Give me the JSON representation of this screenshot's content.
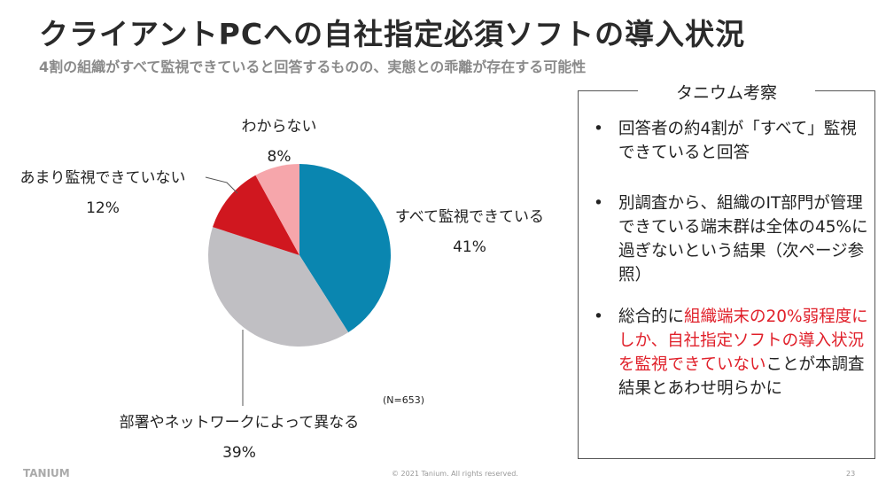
{
  "header": {
    "title": "クライアントPCへの自社指定必須ソフトの導入状況",
    "subtitle": "4割の組織がすべて監視できていると回答するものの、実態との乖離が存在する可能性"
  },
  "chart_data": {
    "type": "pie",
    "note": "(N=653)",
    "slices": [
      {
        "label": "すべて監視できている",
        "value": 41,
        "text": "41%",
        "color": "#0a86b0"
      },
      {
        "label": "部署やネットワークによって異なる",
        "value": 39,
        "text": "39%",
        "color": "#c0bfc3"
      },
      {
        "label": "あまり監視できていない",
        "value": 12,
        "text": "12%",
        "color": "#d0171f"
      },
      {
        "label": "わからない",
        "value": 8,
        "text": "8%",
        "color": "#f6a6ab"
      }
    ]
  },
  "panel": {
    "title": "タニウム考察",
    "bullets": [
      {
        "parts": [
          {
            "t": "回答者の約4割が「すべて」監視できていると回答",
            "red": false
          }
        ]
      },
      {
        "parts": [
          {
            "t": "別調査から、組織のIT部門が管理できている端末群は全体の45%に過ぎないという結果（次ページ参照）",
            "red": false
          }
        ]
      },
      {
        "parts": [
          {
            "t": "総合的に",
            "red": false
          },
          {
            "t": "組織端末の20%弱程度にしか、自社指定ソフトの導入状況を監視できていない",
            "red": true
          },
          {
            "t": "ことが本調査結果とあわせ明らかに",
            "red": false
          }
        ]
      }
    ]
  },
  "footer": {
    "logo": "TANIUM",
    "copyright": "© 2021 Tanium. All rights reserved.",
    "page": "23"
  }
}
